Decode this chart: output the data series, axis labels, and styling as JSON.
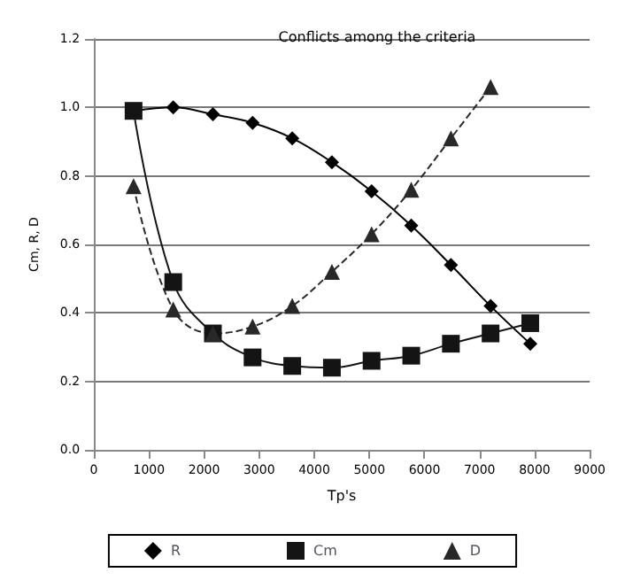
{
  "chart_data": {
    "type": "line",
    "title": "Conflicts among the criteria",
    "xlabel": "Tp's",
    "ylabel": "Cm, R, D",
    "x": [
      720,
      1440,
      2160,
      2880,
      3600,
      4320,
      5040,
      5760,
      6480,
      7200,
      7920
    ],
    "series": [
      {
        "name": "R",
        "color": "#000000",
        "marker": "diamond",
        "line_style": "solid",
        "values": [
          0.99,
          1.0,
          0.98,
          0.955,
          0.91,
          0.84,
          0.755,
          0.655,
          0.54,
          0.42,
          0.31
        ]
      },
      {
        "name": "Cm",
        "color": "#141414",
        "marker": "square",
        "line_style": "solid",
        "values": [
          0.99,
          0.49,
          0.34,
          0.27,
          0.245,
          0.24,
          0.26,
          0.275,
          0.31,
          0.34,
          0.37
        ]
      },
      {
        "name": "D",
        "color": "#282828",
        "marker": "triangle",
        "line_style": "dashed",
        "values": [
          0.77,
          0.41,
          0.34,
          0.36,
          0.42,
          0.52,
          0.63,
          0.76,
          0.91,
          1.06,
          null
        ]
      }
    ],
    "xlim": [
      0,
      9000
    ],
    "xticks": [
      0,
      1000,
      2000,
      3000,
      4000,
      5000,
      6000,
      7000,
      8000,
      9000
    ],
    "ylim": [
      0,
      1.2
    ],
    "yticks": [
      {
        "value": 0,
        "label": "0.0"
      },
      0.2,
      0.4,
      0.6,
      0.8,
      {
        "value": 1,
        "label": "1.0"
      },
      1.2
    ],
    "grid": "y",
    "legend": "bottom"
  }
}
